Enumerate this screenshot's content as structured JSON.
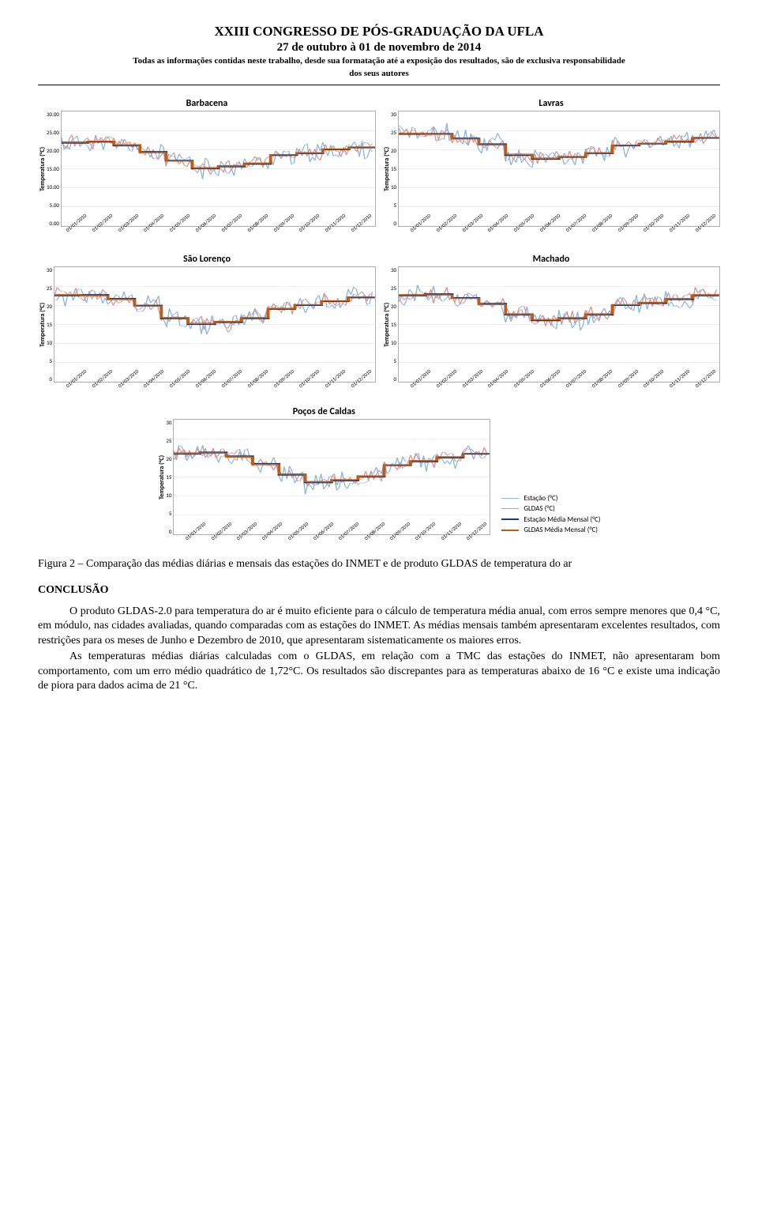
{
  "header": {
    "title": "XXIII CONGRESSO DE PÓS-GRADUAÇÃO DA UFLA",
    "subtitle": "27 de outubro à 01 de novembro de 2014",
    "disclaimer_l1": "Todas as informações contidas neste trabalho, desde sua formatação até a exposição dos resultados, são de exclusiva responsabilidade",
    "disclaimer_l2": "dos seus autores"
  },
  "axis": {
    "ylabel": "Temperatura (°C)",
    "months": [
      "01/01/2010",
      "01/02/2010",
      "01/03/2010",
      "01/04/2010",
      "01/05/2010",
      "01/06/2010",
      "01/07/2010",
      "01/08/2010",
      "01/09/2010",
      "01/10/2010",
      "01/11/2010",
      "01/12/2010"
    ]
  },
  "colors": {
    "estacao_daily": "#8fb8e0",
    "gldas_daily": "#d99694",
    "estacao_mensal": "#1f3864",
    "gldas_mensal": "#c55a11",
    "grid": "#d9d9d9",
    "plot_border": "#b0b0b0",
    "text": "#000000"
  },
  "legend": [
    {
      "label": "Estação (°C)",
      "color": "#8fb8e0",
      "width": 1.2
    },
    {
      "label": "GLDAS (°C)",
      "color": "#d99694",
      "width": 1.2
    },
    {
      "label": "Estação Média Mensal (°C)",
      "color": "#1f3864",
      "width": 2
    },
    {
      "label": "GLDAS Média Mensal (°C)",
      "color": "#c55a11",
      "width": 2
    }
  ],
  "charts": [
    {
      "title": "Barbacena",
      "ymin": 0,
      "ymax": 30,
      "ytick_step": 5,
      "ytick_labels": [
        "30.00",
        "25.00",
        "20.00",
        "15.00",
        "10.00",
        "5.00",
        "0.00"
      ],
      "estacao_mensal": [
        21.7,
        22.0,
        21.0,
        19.5,
        17.2,
        15.0,
        15.5,
        16.2,
        18.5,
        19.0,
        20.0,
        20.5
      ],
      "gldas_mensal": [
        22.0,
        22.2,
        21.3,
        19.2,
        17.0,
        15.3,
        15.8,
        16.5,
        18.7,
        19.2,
        20.2,
        20.7
      ]
    },
    {
      "title": "Lavras",
      "ymin": 0,
      "ymax": 30,
      "ytick_step": 5,
      "ytick_labels": [
        "30",
        "25",
        "20",
        "15",
        "10",
        "5",
        "0"
      ],
      "estacao_mensal": [
        24.0,
        24.2,
        23.0,
        21.5,
        18.5,
        17.5,
        18.0,
        19.0,
        21.0,
        21.5,
        22.0,
        23.0
      ],
      "gldas_mensal": [
        24.3,
        24.0,
        22.8,
        21.2,
        18.8,
        17.8,
        18.2,
        19.2,
        21.2,
        21.7,
        22.3,
        23.2
      ]
    },
    {
      "title": "São Lorenço",
      "ymin": 0,
      "ymax": 30,
      "ytick_step": 5,
      "ytick_labels": [
        "30",
        "25",
        "20",
        "15",
        "10",
        "5",
        "0"
      ],
      "estacao_mensal": [
        22.5,
        22.8,
        21.8,
        20.0,
        16.5,
        15.0,
        15.5,
        16.5,
        19.0,
        20.0,
        21.0,
        22.0
      ],
      "gldas_mensal": [
        22.8,
        22.5,
        21.5,
        19.8,
        16.8,
        15.3,
        15.8,
        16.8,
        19.2,
        20.2,
        21.2,
        22.2
      ]
    },
    {
      "title": "Machado",
      "ymin": 0,
      "ymax": 30,
      "ytick_step": 5,
      "ytick_labels": [
        "30",
        "25",
        "20",
        "15",
        "10",
        "5",
        "0"
      ],
      "estacao_mensal": [
        22.5,
        23.0,
        22.0,
        20.5,
        17.5,
        16.0,
        16.5,
        17.5,
        20.0,
        20.5,
        21.5,
        22.5
      ],
      "gldas_mensal": [
        22.8,
        22.7,
        21.8,
        20.2,
        17.8,
        16.3,
        16.8,
        17.8,
        20.2,
        20.8,
        21.8,
        22.8
      ]
    }
  ],
  "bottom_chart": {
    "title": "Poços de Caldas",
    "ymin": 0,
    "ymax": 30,
    "ytick_step": 5,
    "ytick_labels": [
      "30",
      "25",
      "20",
      "15",
      "10",
      "5",
      "0"
    ],
    "estacao_mensal": [
      21.0,
      21.5,
      20.5,
      18.5,
      15.5,
      13.5,
      14.0,
      15.0,
      18.0,
      19.0,
      20.0,
      21.0
    ],
    "gldas_mensal": [
      21.3,
      21.2,
      20.2,
      18.2,
      15.8,
      13.8,
      14.3,
      15.3,
      18.2,
      19.3,
      20.3,
      21.2
    ]
  },
  "caption": "Figura 2 – Comparação das médias diárias e mensais das estações do INMET e de produto GLDAS de temperatura do ar",
  "section": "CONCLUSÃO",
  "para1": "O produto GLDAS-2.0 para temperatura do ar é muito eficiente para o cálculo de temperatura média anual, com erros sempre menores que 0,4 °C, em módulo, nas cidades avaliadas, quando comparadas com as estações do INMET. As médias mensais também apresentaram excelentes resultados, com restrições para os meses de Junho e Dezembro de 2010, que apresentaram sistematicamente os maiores erros.",
  "para2": "As temperaturas médias diárias calculadas com o GLDAS, em relação com a TMC das estações do INMET, não apresentaram bom comportamento, com um erro médio quadrático de 1,72°C. Os resultados são discrepantes para as temperaturas abaixo de 16 °C e existe uma indicação de piora para dados acima de 21 °C."
}
